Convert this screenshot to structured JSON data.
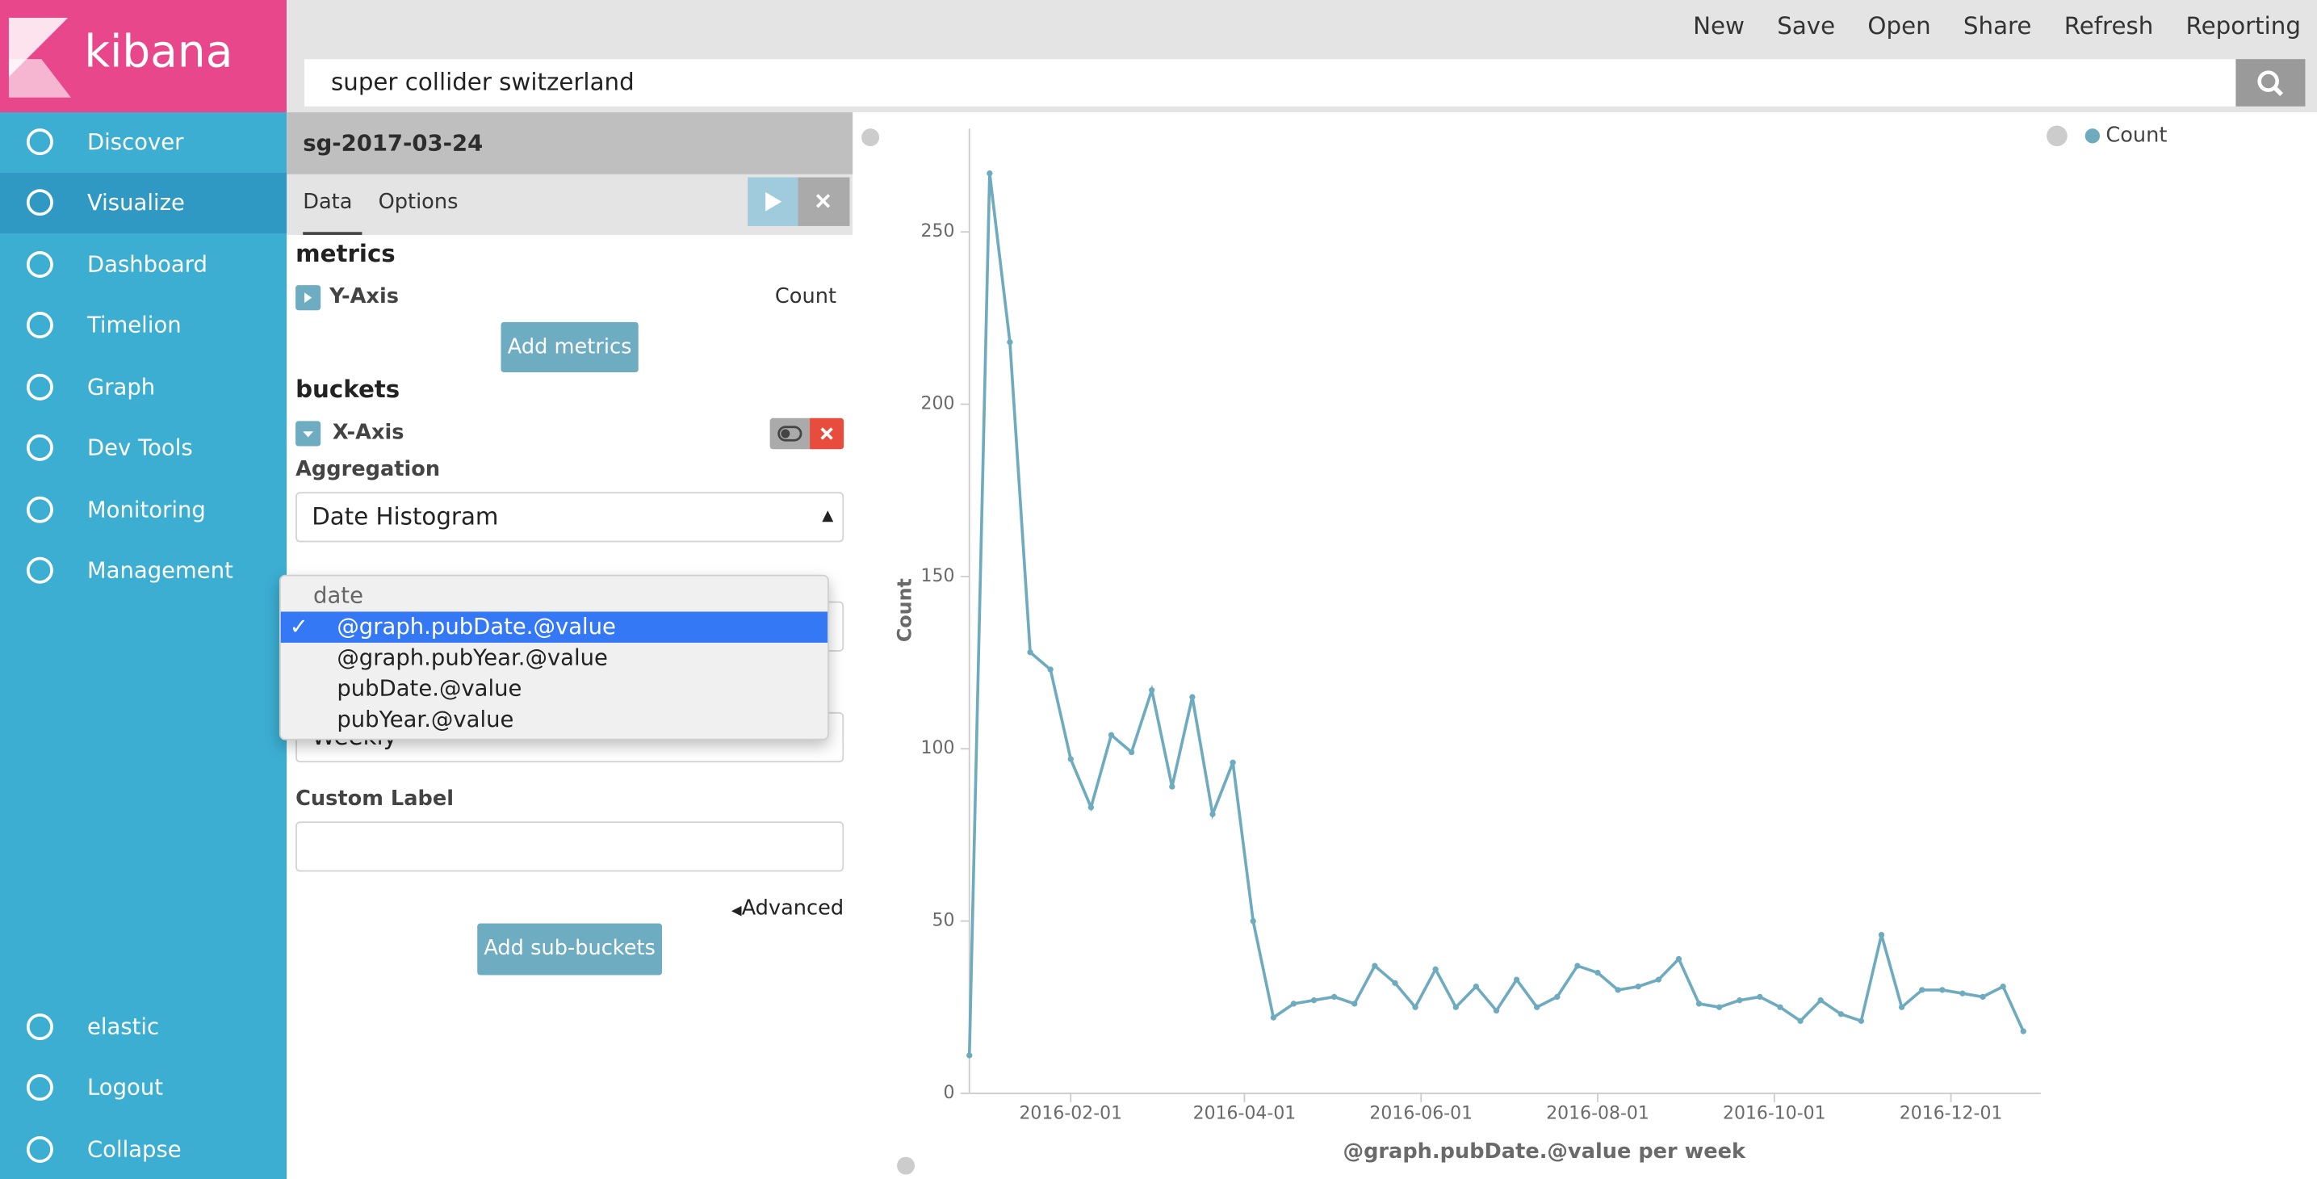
{
  "brand": "kibana",
  "nav": [
    "Discover",
    "Visualize",
    "Dashboard",
    "Timelion",
    "Graph",
    "Dev Tools",
    "Monitoring",
    "Management"
  ],
  "nav_bottom": [
    "elastic",
    "Logout",
    "Collapse"
  ],
  "menu": [
    "New",
    "Save",
    "Open",
    "Share",
    "Refresh",
    "Reporting"
  ],
  "search": "super collider switzerland",
  "panel": {
    "title": "sg-2017-03-24",
    "tabs": [
      "Data",
      "Options"
    ],
    "metrics_heading": "metrics",
    "y_axis": "Y-Axis",
    "y_axis_value": "Count",
    "add_metrics": "Add metrics",
    "buckets_heading": "buckets",
    "x_axis": "X-Axis",
    "aggregation_label": "Aggregation",
    "aggregation": "Date Histogram",
    "interval": "Weekly",
    "custom_label": "Custom Label",
    "advanced": "Advanced",
    "add_sub_buckets": "Add sub-buckets"
  },
  "dropdown": {
    "group": "date",
    "options": [
      "@graph.pubDate.@value",
      "@graph.pubYear.@value",
      "pubDate.@value",
      "pubYear.@value"
    ]
  },
  "chart_data": {
    "type": "line",
    "xlabel": "@graph.pubDate.@value per week",
    "ylabel": "Count",
    "x": [
      "2015-12-28",
      "2016-01-04",
      "2016-01-11",
      "2016-01-18",
      "2016-01-25",
      "2016-02-01",
      "2016-02-08",
      "2016-02-15",
      "2016-02-22",
      "2016-02-29",
      "2016-03-07",
      "2016-03-14",
      "2016-03-21",
      "2016-03-28",
      "2016-04-04",
      "2016-04-11",
      "2016-04-18",
      "2016-04-25",
      "2016-05-02",
      "2016-05-09",
      "2016-05-16",
      "2016-05-23",
      "2016-05-30",
      "2016-06-06",
      "2016-06-13",
      "2016-06-20",
      "2016-06-27",
      "2016-07-04",
      "2016-07-11",
      "2016-07-18",
      "2016-07-25",
      "2016-08-01",
      "2016-08-08",
      "2016-08-15",
      "2016-08-22",
      "2016-08-29",
      "2016-09-05",
      "2016-09-12",
      "2016-09-19",
      "2016-09-26",
      "2016-10-03",
      "2016-10-10",
      "2016-10-17",
      "2016-10-24",
      "2016-10-31",
      "2016-11-07",
      "2016-11-14",
      "2016-11-21",
      "2016-11-28",
      "2016-12-05",
      "2016-12-12",
      "2016-12-19",
      "2016-12-26"
    ],
    "series": [
      {
        "name": "Count",
        "color": "#6eabbf",
        "values": [
          11,
          267,
          218,
          128,
          123,
          97,
          83,
          104,
          99,
          117,
          89,
          115,
          81,
          96,
          50,
          22,
          26,
          27,
          28,
          26,
          37,
          32,
          25,
          36,
          25,
          31,
          24,
          33,
          25,
          28,
          37,
          35,
          30,
          31,
          33,
          39,
          26,
          25,
          27,
          28,
          25,
          21,
          27,
          23,
          21,
          46,
          25,
          30,
          30,
          29,
          28,
          31,
          18
        ]
      }
    ],
    "xlim": [
      "2015-12-28",
      "2017-01-01"
    ],
    "xticks": [
      "2016-02-01",
      "2016-04-01",
      "2016-06-01",
      "2016-08-01",
      "2016-10-01",
      "2016-12-01"
    ],
    "ylim": [
      0,
      280
    ],
    "yticks": [
      0,
      50,
      100,
      150,
      200,
      250
    ],
    "grid": false,
    "legend": "top-right"
  }
}
